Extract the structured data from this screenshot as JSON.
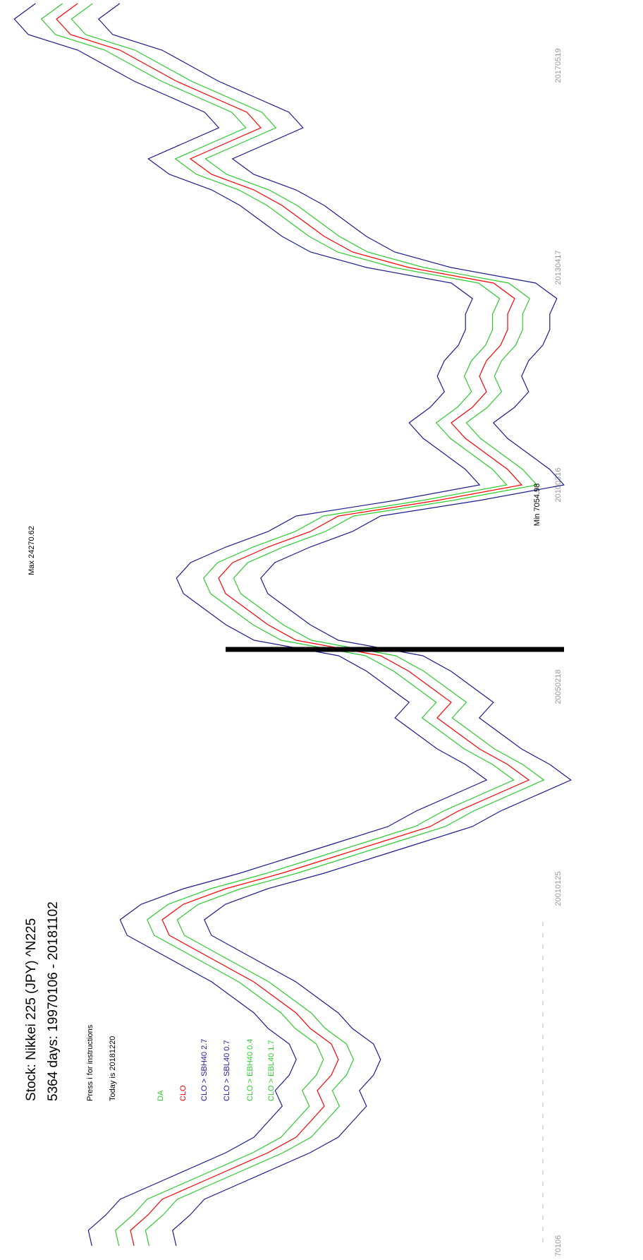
{
  "chart_data": {
    "type": "line",
    "title": "Stock: Nikkei 225 (JPY) ^N225",
    "subtitle": "5364 days: 19970106 - 20181102",
    "notes": [
      "Press i for instructions",
      "Today is 20181220"
    ],
    "legend_header": "DA",
    "max_label": "Max 24270.62",
    "min_label": "Min 7054.98",
    "ylim": [
      7054.98,
      24270.62
    ],
    "categories": [
      "70106",
      null,
      null,
      null,
      null,
      null,
      null,
      null,
      null,
      null,
      null,
      null,
      null,
      null,
      null,
      null,
      null,
      null,
      null,
      null,
      null,
      null,
      null,
      "20010125",
      null,
      null,
      null,
      null,
      null,
      null,
      null,
      null,
      null,
      null,
      null,
      null,
      "20050218",
      null,
      null,
      null,
      null,
      null,
      null,
      null,
      null,
      null,
      null,
      null,
      null,
      "20100316",
      null,
      null,
      null,
      null,
      null,
      null,
      null,
      null,
      null,
      null,
      null,
      null,
      null,
      "20130417",
      null,
      null,
      null,
      null,
      null,
      null,
      null,
      null,
      null,
      null,
      null,
      null,
      "20170519",
      null,
      null,
      null,
      null
    ],
    "series": [
      {
        "name": "CLO > SBH40 2.7",
        "color": "#1c1c8f",
        "values": [
          21804,
          21922,
          21336,
          20868,
          19697,
          18526,
          17355,
          16418,
          15949,
          15481,
          15715,
          15247,
          15013,
          15247,
          15949,
          16418,
          17120,
          17823,
          18760,
          19697,
          20633,
          20868,
          20165,
          18760,
          16886,
          15247,
          13607,
          11968,
          11031,
          9860,
          8689,
          9392,
          10329,
          11031,
          11734,
          11265,
          11968,
          12671,
          13607,
          16418,
          17355,
          18057,
          18760,
          18994,
          18526,
          17355,
          15949,
          15013,
          11734,
          8923,
          9392,
          10094,
          10797,
          11265,
          10563,
          10094,
          10329,
          10094,
          9626,
          9392,
          9392,
          9158,
          9860,
          12671,
          14544,
          15481,
          16184,
          16886,
          17823,
          19228,
          19931,
          18760,
          17589,
          18057,
          19228,
          20399,
          21336,
          22273,
          23912,
          24381,
          23678
        ]
      },
      {
        "name": "CLO > SBL40 0.7",
        "color": "#1c1c8f",
        "values": [
          19004,
          19122,
          18536,
          18068,
          16897,
          15726,
          14555,
          13618,
          13149,
          12681,
          12915,
          12447,
          12213,
          12447,
          13149,
          13618,
          14320,
          15023,
          15960,
          16897,
          17833,
          18068,
          17365,
          15960,
          14086,
          12447,
          10807,
          9168,
          8231,
          7060,
          5889,
          6592,
          7529,
          8231,
          8934,
          8465,
          9168,
          9871,
          10807,
          13618,
          14555,
          15257,
          15960,
          16194,
          15726,
          14555,
          13149,
          12213,
          8934,
          6123,
          6592,
          7294,
          7997,
          8465,
          7763,
          7294,
          7529,
          7294,
          6826,
          6592,
          6592,
          6358,
          7060,
          9871,
          11744,
          12681,
          13384,
          14086,
          15023,
          16428,
          17131,
          15960,
          14789,
          15257,
          16428,
          17599,
          18536,
          19473,
          21112,
          21581,
          20878
        ]
      },
      {
        "name": "CLO > EBH40 0.4",
        "color": "#2ecc2e",
        "values": [
          20904,
          21022,
          20436,
          19968,
          18797,
          17626,
          16455,
          15518,
          15049,
          14581,
          14815,
          14347,
          14113,
          14347,
          15049,
          15518,
          16220,
          16923,
          17860,
          18797,
          19733,
          19968,
          19265,
          17860,
          15986,
          14347,
          12707,
          11068,
          10131,
          8960,
          7789,
          8492,
          9429,
          10131,
          10834,
          10365,
          11068,
          11771,
          12707,
          15518,
          16455,
          17157,
          17860,
          18094,
          17626,
          16455,
          15049,
          14113,
          10834,
          8023,
          8492,
          9194,
          9897,
          10365,
          9663,
          9194,
          9429,
          9194,
          8726,
          8492,
          8492,
          8258,
          8960,
          11771,
          13644,
          14581,
          15284,
          15986,
          16923,
          18328,
          19031,
          17860,
          16689,
          17157,
          18328,
          19499,
          20436,
          21373,
          23012,
          23481,
          22778
        ]
      },
      {
        "name": "CLO > EBL40 1.7",
        "color": "#2ecc2e",
        "values": [
          19904,
          20022,
          19436,
          18968,
          17797,
          16626,
          15455,
          14518,
          14049,
          13581,
          13815,
          13347,
          13113,
          13347,
          14049,
          14518,
          15220,
          15923,
          16860,
          17797,
          18733,
          18968,
          18265,
          16860,
          14986,
          13347,
          11707,
          10068,
          9131,
          7960,
          6789,
          7492,
          8429,
          9131,
          9834,
          9365,
          10068,
          10771,
          11707,
          14518,
          15455,
          16157,
          16860,
          17094,
          16626,
          15455,
          14049,
          13113,
          9834,
          7023,
          7492,
          8194,
          8897,
          9365,
          8663,
          8194,
          8429,
          8194,
          7726,
          7492,
          7492,
          7258,
          7960,
          10771,
          12644,
          13581,
          14284,
          14986,
          15923,
          17328,
          18031,
          16860,
          15689,
          16157,
          17328,
          18499,
          19436,
          20373,
          22012,
          22481,
          21778
        ]
      },
      {
        "name": "CLO",
        "color": "#ff0000",
        "values": [
          20404,
          20522,
          19936,
          19468,
          18297,
          17126,
          15955,
          15018,
          14549,
          14081,
          14315,
          13847,
          13613,
          13847,
          14549,
          15018,
          15720,
          16423,
          17360,
          18297,
          19233,
          19468,
          18765,
          17360,
          15486,
          13847,
          12207,
          10568,
          9631,
          8460,
          7289,
          7992,
          8929,
          9631,
          10334,
          9865,
          10568,
          11271,
          12207,
          15018,
          15955,
          16657,
          17360,
          17594,
          17126,
          15955,
          14549,
          13613,
          10334,
          7523,
          7992,
          8694,
          9397,
          9865,
          9163,
          8694,
          8929,
          8694,
          8226,
          7992,
          7992,
          7758,
          8460,
          11271,
          13144,
          14081,
          14784,
          15486,
          16423,
          17828,
          18531,
          17360,
          16189,
          16657,
          17828,
          18999,
          19936,
          20873,
          22512,
          22981,
          22278
        ]
      }
    ]
  }
}
